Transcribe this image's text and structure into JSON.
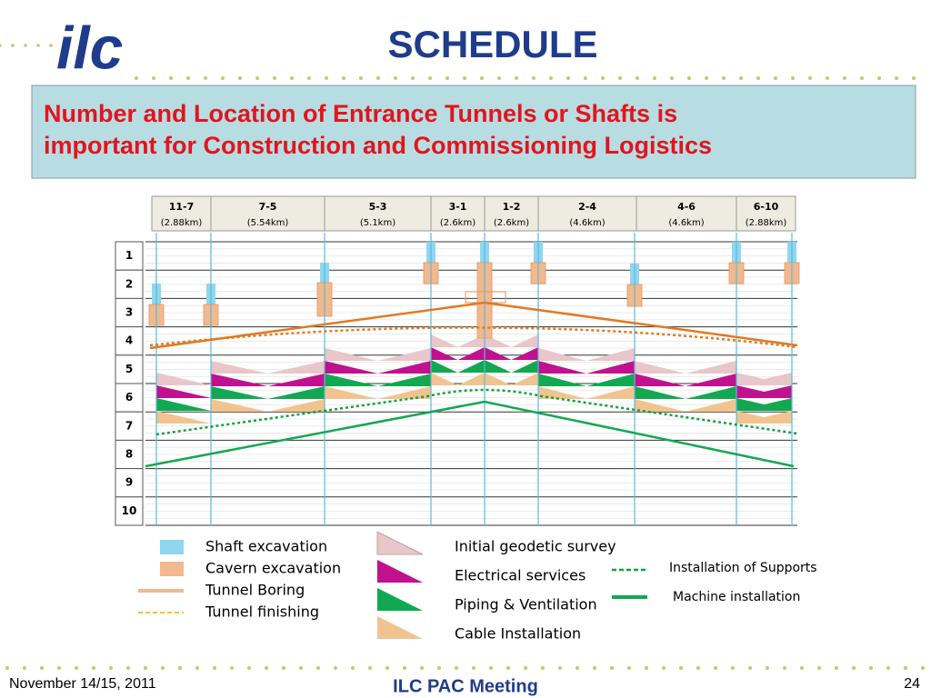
{
  "header": {
    "logo": "ilc",
    "title": "SCHEDULE"
  },
  "banner": {
    "lines": [
      "Number and Location of Entrance Tunnels or Shafts is",
      "important for Construction and Commissioning Logistics"
    ]
  },
  "sections": [
    {
      "label": "11-7",
      "length": "(2.88km)"
    },
    {
      "label": "7-5",
      "length": "(5.54km)"
    },
    {
      "label": "5-3",
      "length": "(5.1km)"
    },
    {
      "label": "3-1",
      "length": "(2.6km)"
    },
    {
      "label": "1-2",
      "length": "(2.6km)"
    },
    {
      "label": "2-4",
      "length": "(4.6km)"
    },
    {
      "label": "4-6",
      "length": "(4.6km)"
    },
    {
      "label": "6-10",
      "length": "(2.88km)"
    }
  ],
  "rows": [
    "1",
    "2",
    "3",
    "4",
    "5",
    "6",
    "7",
    "8",
    "9",
    "10"
  ],
  "legend": {
    "left": [
      "Shaft excavation",
      "Cavern excavation",
      "Tunnel Boring",
      "Tunnel finishing"
    ],
    "middle": [
      "Initial geodetic survey",
      "Electrical services",
      "Piping & Ventilation",
      "Cable Installation"
    ],
    "right": [
      "Installation of Supports",
      "Machine installation"
    ]
  },
  "footer": {
    "date": "November 14/15, 2011",
    "meeting": "ILC PAC Meeting",
    "page": "24"
  }
}
